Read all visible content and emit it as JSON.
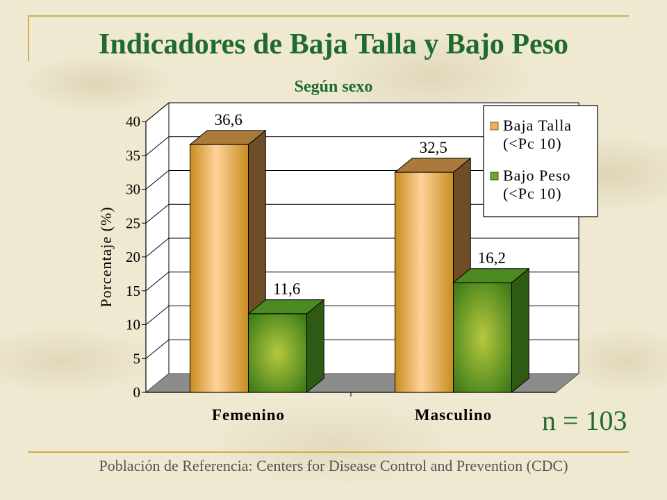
{
  "colors": {
    "title": "#1f6b2e",
    "baja_talla": "#e7b454",
    "bajo_peso": "#6fa33a",
    "rules": "#c9b04c"
  },
  "slide": {
    "n_label": "n = 103",
    "footnote": "Población de Referencia:  Centers for Disease Control and Prevention (CDC)"
  },
  "chart_data": {
    "type": "bar",
    "title": "Indicadores de Baja Talla y Bajo Peso",
    "subtitle": "Según sexo",
    "xlabel": "",
    "ylabel": "Porcentaje (%)",
    "categories": [
      "Femenino",
      "Masculino"
    ],
    "series": [
      {
        "name": "Baja Talla (<Pc 10)",
        "values": [
          36.6,
          32.5
        ],
        "labels": [
          "36,6",
          "32,5"
        ]
      },
      {
        "name": "Bajo Peso (<Pc 10)",
        "values": [
          11.6,
          16.2
        ],
        "labels": [
          "11,6",
          "16,2"
        ]
      }
    ],
    "ylim": [
      0,
      40
    ],
    "yticks": [
      0,
      5,
      10,
      15,
      20,
      25,
      30,
      35,
      40
    ],
    "grid": true,
    "legend": "top-right",
    "style": "3d"
  }
}
